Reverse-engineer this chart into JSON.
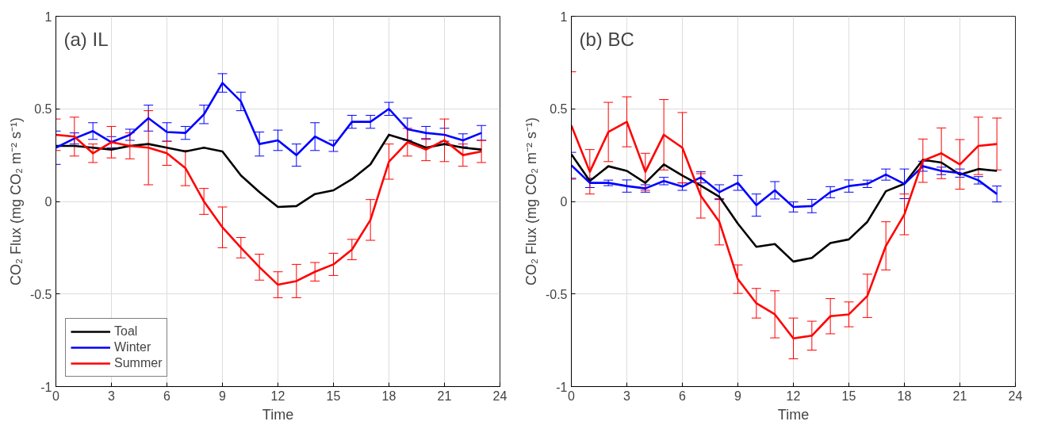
{
  "chart_data": [
    {
      "type": "line",
      "annotations": [
        "(a) IL"
      ],
      "xlabel": "Time",
      "ylabel": "CO₂ Flux (mg CO₂ m⁻² s⁻¹)",
      "x": [
        0,
        1,
        2,
        3,
        4,
        5,
        6,
        7,
        8,
        9,
        10,
        11,
        12,
        13,
        14,
        15,
        16,
        17,
        18,
        19,
        20,
        21,
        22,
        23
      ],
      "xlim": [
        0,
        24
      ],
      "xticks": [
        0,
        3,
        6,
        9,
        12,
        15,
        18,
        21,
        24
      ],
      "ylim": [
        -1,
        1
      ],
      "yticks": [
        -1,
        -0.5,
        0,
        0.5,
        1
      ],
      "grid": true,
      "legend": "bottom left",
      "marker": "none",
      "line_style": "solid",
      "series": [
        {
          "name": "Toal",
          "color": "#000000",
          "values": [
            0.3,
            0.3,
            0.29,
            0.28,
            0.3,
            0.31,
            0.29,
            0.27,
            0.29,
            0.27,
            0.14,
            0.05,
            -0.03,
            -0.025,
            0.04,
            0.06,
            0.12,
            0.2,
            0.36,
            0.33,
            0.29,
            0.31,
            0.29,
            0.28
          ]
        },
        {
          "name": "Winter",
          "color": "#0000ff",
          "values": [
            0.29,
            0.34,
            0.38,
            0.32,
            0.36,
            0.45,
            0.375,
            0.37,
            0.47,
            0.64,
            0.54,
            0.31,
            0.33,
            0.25,
            0.35,
            0.3,
            0.43,
            0.43,
            0.5,
            0.39,
            0.37,
            0.36,
            0.33,
            0.37
          ],
          "errors": [
            0.09,
            0.03,
            0.045,
            0.03,
            0.03,
            0.07,
            0.05,
            0.035,
            0.05,
            0.05,
            0.05,
            0.065,
            0.055,
            0.06,
            0.075,
            0.03,
            0.035,
            0.035,
            0.035,
            0.06,
            0.035,
            0.035,
            0.035,
            0.04
          ]
        },
        {
          "name": "Summer",
          "color": "#ff0000",
          "values": [
            0.36,
            0.35,
            0.26,
            0.32,
            0.3,
            0.29,
            0.26,
            0.18,
            0.0,
            -0.14,
            -0.25,
            -0.355,
            -0.45,
            -0.43,
            -0.38,
            -0.34,
            -0.26,
            -0.1,
            0.215,
            0.32,
            0.28,
            0.33,
            0.25,
            0.27
          ],
          "errors": [
            0.085,
            0.105,
            0.05,
            0.085,
            0.07,
            0.2,
            0.065,
            0.095,
            0.07,
            0.11,
            0.055,
            0.07,
            0.07,
            0.09,
            0.05,
            0.06,
            0.055,
            0.11,
            0.095,
            0.075,
            0.06,
            0.115,
            0.06,
            0.06
          ]
        }
      ]
    },
    {
      "type": "line",
      "annotations": [
        "(b) BC"
      ],
      "xlabel": "Time",
      "ylabel": "CO₂ Flux (mg CO₂ m⁻² s⁻¹)",
      "x": [
        0,
        1,
        2,
        3,
        4,
        5,
        6,
        7,
        8,
        9,
        10,
        11,
        12,
        13,
        14,
        15,
        16,
        17,
        18,
        19,
        20,
        21,
        22,
        23
      ],
      "xlim": [
        0,
        24
      ],
      "xticks": [
        0,
        3,
        6,
        9,
        12,
        15,
        18,
        21,
        24
      ],
      "ylim": [
        -1,
        1
      ],
      "yticks": [
        -1,
        -0.5,
        0,
        0.5,
        1
      ],
      "grid": true,
      "marker": "none",
      "line_style": "solid",
      "series": [
        {
          "color": "#000000",
          "values": [
            0.255,
            0.11,
            0.19,
            0.165,
            0.1,
            0.2,
            0.14,
            0.085,
            0.025,
            -0.12,
            -0.245,
            -0.23,
            -0.325,
            -0.305,
            -0.225,
            -0.205,
            -0.11,
            0.055,
            0.095,
            0.225,
            0.21,
            0.145,
            0.175,
            0.165
          ]
        },
        {
          "color": "#0000ff",
          "values": [
            0.195,
            0.1,
            0.1,
            0.083,
            0.07,
            0.11,
            0.08,
            0.13,
            0.05,
            0.1,
            -0.02,
            0.06,
            -0.03,
            -0.025,
            0.05,
            0.083,
            0.095,
            0.145,
            0.095,
            0.19,
            0.165,
            0.153,
            0.114,
            0.04
          ],
          "errors": [
            0.07,
            0.025,
            0.015,
            0.033,
            0.02,
            0.02,
            0.02,
            0.03,
            0.04,
            0.04,
            0.06,
            0.047,
            0.027,
            0.036,
            0.03,
            0.033,
            0.02,
            0.03,
            0.08,
            0.027,
            0.02,
            0.022,
            0.02,
            0.043
          ]
        },
        {
          "color": "#ff0000",
          "values": [
            0.41,
            0.16,
            0.375,
            0.43,
            0.16,
            0.36,
            0.29,
            0.03,
            -0.11,
            -0.42,
            -0.55,
            -0.61,
            -0.74,
            -0.725,
            -0.62,
            -0.61,
            -0.51,
            -0.24,
            -0.07,
            0.22,
            0.26,
            0.2,
            0.3,
            0.31
          ],
          "errors": [
            0.29,
            0.12,
            0.16,
            0.135,
            0.1,
            0.19,
            0.19,
            0.12,
            0.125,
            0.077,
            0.08,
            0.127,
            0.11,
            0.078,
            0.095,
            0.067,
            0.117,
            0.13,
            0.11,
            0.117,
            0.137,
            0.134,
            0.155,
            0.14
          ]
        }
      ]
    }
  ]
}
